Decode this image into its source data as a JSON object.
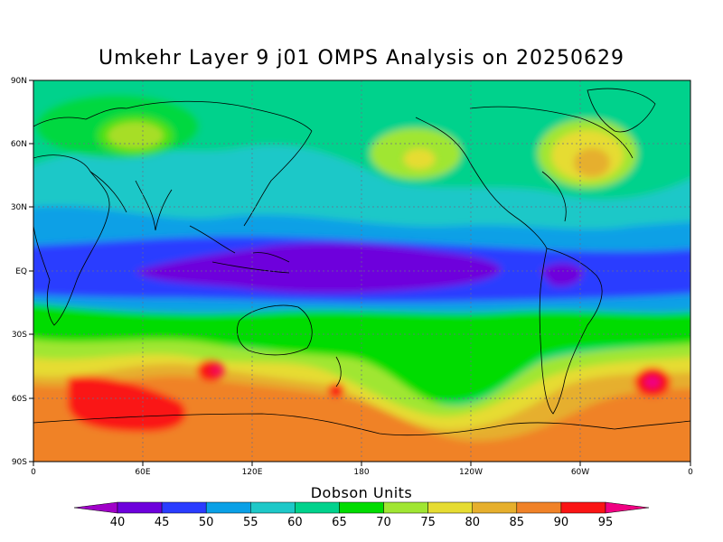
{
  "title": "Umkehr Layer 9 j01 OMPS Analysis on 20250629",
  "map": {
    "y_ticks": [
      "90N",
      "60N",
      "30N",
      "EQ",
      "30S",
      "60S",
      "90S"
    ],
    "x_ticks": [
      "0",
      "60E",
      "120E",
      "180",
      "120W",
      "60W",
      "0"
    ]
  },
  "colorbar": {
    "label": "Dobson Units",
    "levels": [
      "40",
      "45",
      "50",
      "55",
      "60",
      "65",
      "70",
      "75",
      "80",
      "85",
      "90",
      "95"
    ],
    "colors": [
      "#a000c8",
      "#6e00dc",
      "#2a3cff",
      "#0aa0e6",
      "#1ec8c8",
      "#00d28c",
      "#00dc00",
      "#a0e632",
      "#e6dc32",
      "#e6af2d",
      "#f08228",
      "#fa1414",
      "#f00082"
    ]
  },
  "chart_data": {
    "type": "heatmap",
    "title": "Umkehr Layer 9 j01 OMPS Analysis on 20250629",
    "xlabel": "",
    "ylabel": "",
    "units": "Dobson Units",
    "xlim": [
      "0",
      "0"
    ],
    "ylim": [
      "90S",
      "90N"
    ],
    "field_summary": [
      {
        "region": "Equatorial band (10S-10N), Indian Ocean to Central Pacific",
        "value_range": [
          40,
          50
        ]
      },
      {
        "region": "Northern subtropics / mid-latitudes",
        "value_range": [
          55,
          65
        ]
      },
      {
        "region": "Arctic / high northern latitudes",
        "value_range": [
          65,
          75
        ]
      },
      {
        "region": "Northwest Atlantic / Eastern Canada maximum",
        "value_range": [
          80,
          85
        ]
      },
      {
        "region": "Southern mid-latitudes (40S-70S)",
        "value_range": [
          75,
          90
        ]
      },
      {
        "region": "South Indian Ocean maximum (40E-60E, 60S)",
        "value_range": [
          90,
          95
        ]
      },
      {
        "region": "South Atlantic maximum (20W, 50S)",
        "value_range": [
          95,
          100
        ]
      },
      {
        "region": "Antarctica",
        "value_range": [
          85,
          90
        ]
      }
    ]
  }
}
